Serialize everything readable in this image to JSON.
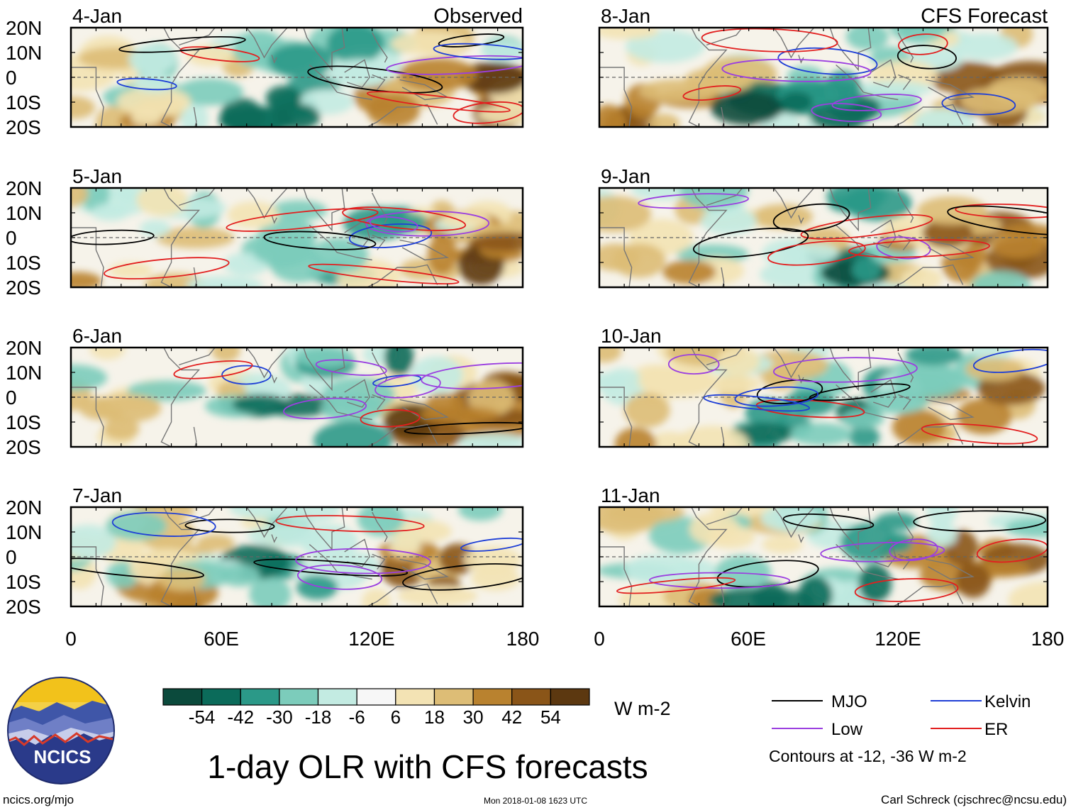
{
  "chart_data": {
    "type": "heatmap",
    "title": "1-day OLR with CFS forecasts",
    "variable": "Outgoing longwave radiation anomaly",
    "units": "W m-2",
    "columns": [
      {
        "heading": "Observed",
        "dates": [
          "4-Jan",
          "5-Jan",
          "6-Jan",
          "7-Jan"
        ]
      },
      {
        "heading": "CFS Forecast",
        "dates": [
          "8-Jan",
          "9-Jan",
          "10-Jan",
          "11-Jan"
        ]
      }
    ],
    "x_ticks": [
      "0",
      "60E",
      "120E",
      "180"
    ],
    "x_values": [
      0,
      60,
      120,
      180
    ],
    "xlim": [
      0,
      180
    ],
    "y_ticks": [
      "20N",
      "10N",
      "0",
      "10S",
      "20S"
    ],
    "y_values": [
      20,
      10,
      0,
      -10,
      -20
    ],
    "ylim": [
      -20,
      20
    ],
    "colorbar": {
      "colors": [
        "#0b4a3c",
        "#0b6b5a",
        "#2b9988",
        "#7cccbb",
        "#c3ebe2",
        "#f7f7f7",
        "#f3e3b4",
        "#ddbd76",
        "#b9822f",
        "#8a5518",
        "#5c3810"
      ],
      "tick_labels": [
        "-54",
        "-42",
        "-30",
        "-18",
        "-6",
        "6",
        "18",
        "30",
        "42",
        "54"
      ]
    },
    "legend": [
      {
        "name": "MJO",
        "color": "#000000"
      },
      {
        "name": "Kelvin",
        "color": "#1f3fd6"
      },
      {
        "name": "Low",
        "color": "#9b3fe0"
      },
      {
        "name": "ER",
        "color": "#e21f1f"
      }
    ],
    "contour_note": "Contours at -12, -36 W m-2"
  },
  "branding": {
    "logo_text": "NCICS",
    "url": "ncics.org/mjo",
    "timestamp": "Mon 2018-01-08 1623 UTC",
    "author": "Carl Schreck (cjschrec@ncsu.edu)"
  }
}
